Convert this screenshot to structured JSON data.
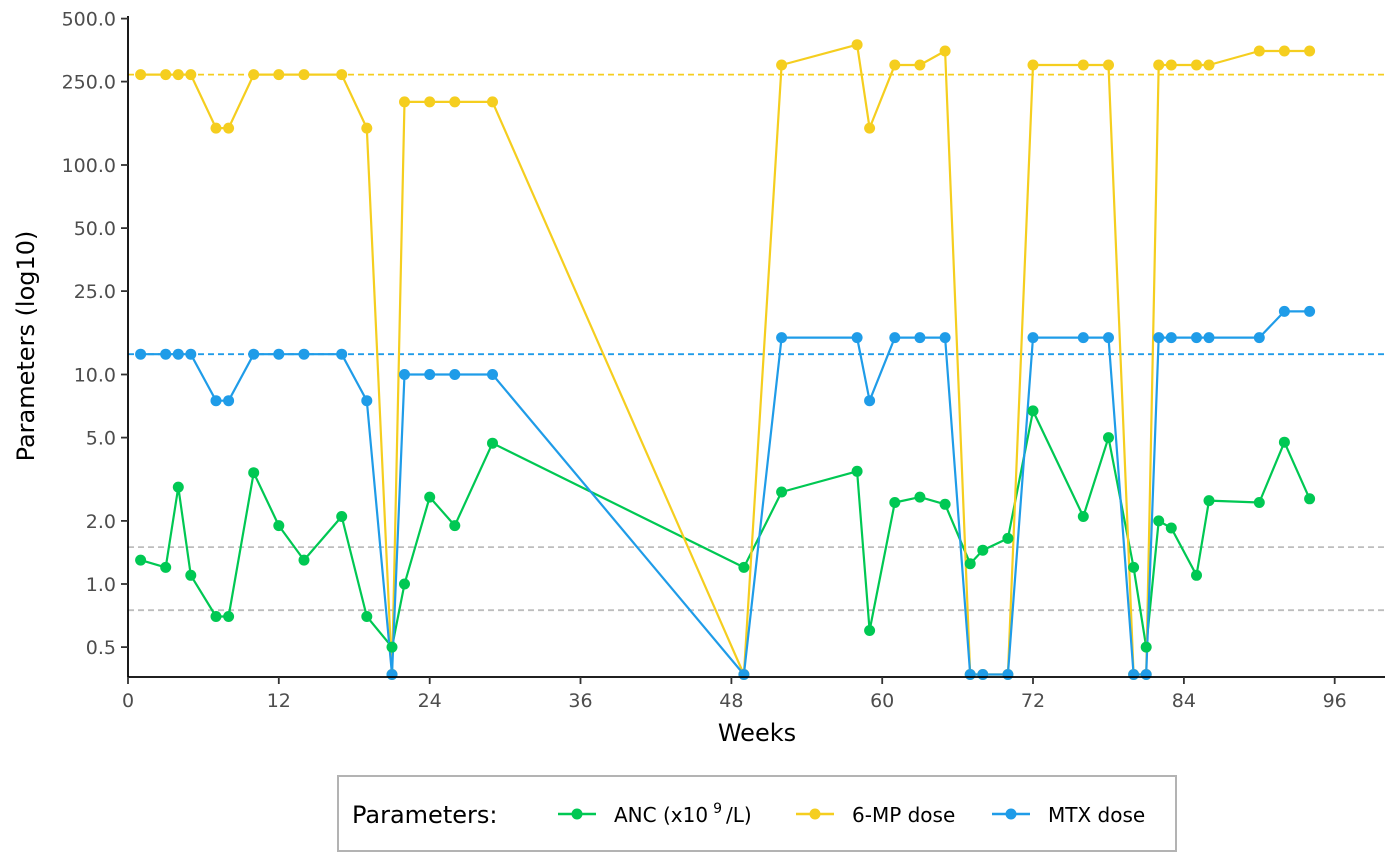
{
  "chart_data": {
    "type": "line",
    "xlabel": "Weeks",
    "ylabel": "Parameters (log10)",
    "y_scale": "log10",
    "xlim": [
      0,
      100
    ],
    "ylim": [
      0.37,
      500
    ],
    "x_ticks": [
      0,
      12,
      24,
      36,
      48,
      60,
      72,
      84,
      96
    ],
    "y_ticks": [
      0.5,
      1.0,
      2.0,
      5.0,
      10.0,
      25.0,
      50.0,
      100.0,
      250.0,
      500.0
    ],
    "y_tick_labels": [
      "0.5",
      "1.0",
      "2.0",
      "5.0",
      "10.0",
      "25.0",
      "50.0",
      "100.0",
      "250.0",
      "500.0"
    ],
    "grid": false,
    "legend": {
      "position": "bottom",
      "title": "Parameters:",
      "anc_label_prefix": "ANC (x10",
      "anc_label_sup": "9",
      "anc_label_suffix": "/L)"
    },
    "reference_lines": [
      {
        "y": 270,
        "color": "#F5CE1F",
        "style": "dashed"
      },
      {
        "y": 12.5,
        "color": "#1F9CE8",
        "style": "dashed"
      },
      {
        "y": 1.5,
        "color": "#BDBDBD",
        "style": "dashed"
      },
      {
        "y": 0.75,
        "color": "#BDBDBD",
        "style": "dashed"
      }
    ],
    "series": [
      {
        "name": "ANC (x10⁹/L)",
        "color": "#00C853",
        "points": [
          [
            1,
            1.3
          ],
          [
            3,
            1.2
          ],
          [
            4,
            2.9
          ],
          [
            5,
            1.1
          ],
          [
            7,
            0.7
          ],
          [
            8,
            0.7
          ],
          [
            10,
            3.4
          ],
          [
            12,
            1.9
          ],
          [
            14,
            1.3
          ],
          [
            17,
            2.1
          ],
          [
            19,
            0.7
          ],
          [
            21,
            0.5
          ],
          [
            22,
            1.0
          ],
          [
            24,
            2.6
          ],
          [
            26,
            1.9
          ],
          [
            29,
            4.7
          ],
          [
            49,
            1.2
          ],
          [
            52,
            2.75
          ],
          [
            58,
            3.45
          ],
          [
            59,
            0.6
          ],
          [
            61,
            2.45
          ],
          [
            63,
            2.6
          ],
          [
            65,
            2.4
          ],
          [
            67,
            1.25
          ],
          [
            68,
            1.45
          ],
          [
            70,
            1.65
          ],
          [
            72,
            6.7
          ],
          [
            76,
            2.1
          ],
          [
            78,
            5.0
          ],
          [
            80,
            1.2
          ],
          [
            81,
            0.5
          ],
          [
            82,
            2.0
          ],
          [
            83,
            1.85
          ],
          [
            85,
            1.1
          ],
          [
            86,
            2.5
          ],
          [
            90,
            2.45
          ],
          [
            92,
            4.75
          ],
          [
            94,
            2.55
          ]
        ]
      },
      {
        "name": "6-MP dose",
        "color": "#F5CE1F",
        "points": [
          [
            1,
            270
          ],
          [
            3,
            270
          ],
          [
            4,
            270
          ],
          [
            5,
            270
          ],
          [
            7,
            150
          ],
          [
            8,
            150
          ],
          [
            10,
            270
          ],
          [
            12,
            270
          ],
          [
            14,
            270
          ],
          [
            17,
            270
          ],
          [
            19,
            150
          ],
          [
            21,
            0.37
          ],
          [
            22,
            200
          ],
          [
            24,
            200
          ],
          [
            26,
            200
          ],
          [
            29,
            200
          ],
          [
            49,
            0.37
          ],
          [
            52,
            300
          ],
          [
            58,
            375
          ],
          [
            59,
            150
          ],
          [
            61,
            300
          ],
          [
            63,
            300
          ],
          [
            65,
            350
          ],
          [
            67,
            0.37
          ],
          [
            68,
            0.37
          ],
          [
            70,
            0.37
          ],
          [
            72,
            300
          ],
          [
            76,
            300
          ],
          [
            78,
            300
          ],
          [
            80,
            0.37
          ],
          [
            81,
            0.37
          ],
          [
            82,
            300
          ],
          [
            83,
            300
          ],
          [
            85,
            300
          ],
          [
            86,
            300
          ],
          [
            90,
            350
          ],
          [
            92,
            350
          ],
          [
            94,
            350
          ]
        ]
      },
      {
        "name": "MTX dose",
        "color": "#1F9CE8",
        "points": [
          [
            1,
            12.5
          ],
          [
            3,
            12.5
          ],
          [
            4,
            12.5
          ],
          [
            5,
            12.5
          ],
          [
            7,
            7.5
          ],
          [
            8,
            7.5
          ],
          [
            10,
            12.5
          ],
          [
            12,
            12.5
          ],
          [
            14,
            12.5
          ],
          [
            17,
            12.5
          ],
          [
            19,
            7.5
          ],
          [
            21,
            0.37
          ],
          [
            22,
            10
          ],
          [
            24,
            10
          ],
          [
            26,
            10
          ],
          [
            29,
            10
          ],
          [
            49,
            0.37
          ],
          [
            52,
            15
          ],
          [
            58,
            15
          ],
          [
            59,
            7.5
          ],
          [
            61,
            15
          ],
          [
            63,
            15
          ],
          [
            65,
            15
          ],
          [
            67,
            0.37
          ],
          [
            68,
            0.37
          ],
          [
            70,
            0.37
          ],
          [
            72,
            15
          ],
          [
            76,
            15
          ],
          [
            78,
            15
          ],
          [
            80,
            0.37
          ],
          [
            81,
            0.37
          ],
          [
            82,
            15
          ],
          [
            83,
            15
          ],
          [
            85,
            15
          ],
          [
            86,
            15
          ],
          [
            90,
            15
          ],
          [
            92,
            20
          ],
          [
            94,
            20
          ]
        ]
      }
    ]
  }
}
